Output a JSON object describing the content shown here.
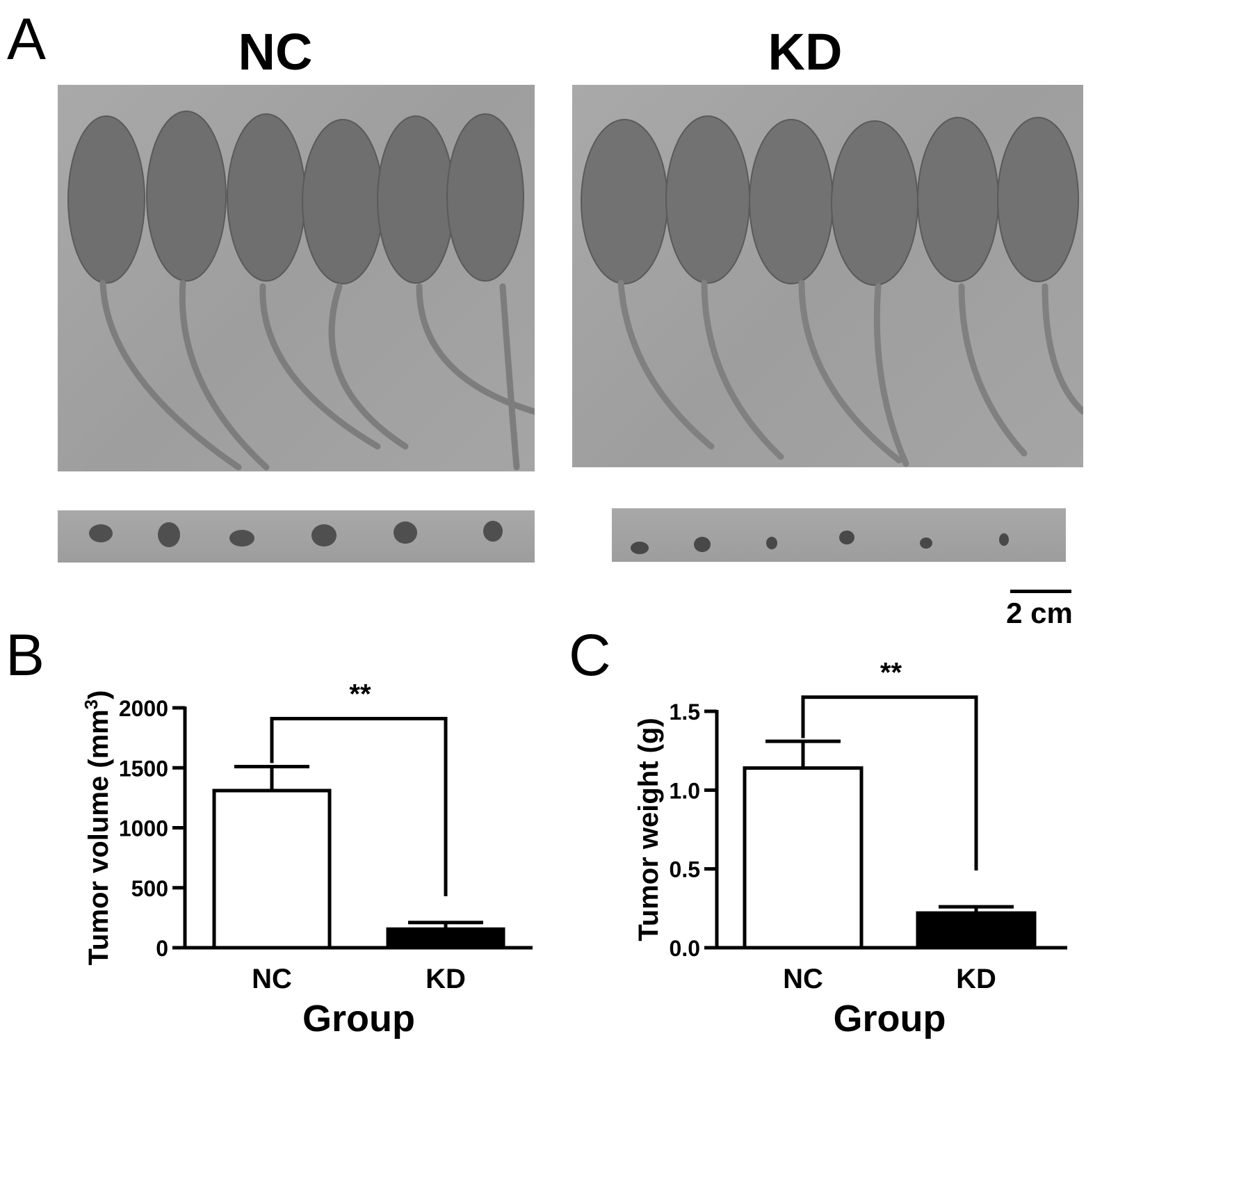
{
  "panels": {
    "a": {
      "letter": "A",
      "groups": [
        "NC",
        "KD"
      ],
      "scale_bar": "2 cm"
    },
    "b": {
      "letter": "B"
    },
    "c": {
      "letter": "C"
    }
  },
  "chart_data": [
    {
      "type": "bar",
      "categories": [
        "NC",
        "KD"
      ],
      "values": [
        1310,
        155
      ],
      "errors": [
        200,
        55
      ],
      "bar_fill": [
        "#ffffff",
        "#000000"
      ],
      "ylabel": "Tumor volume (mm",
      "ylabel_sup": "3",
      "ylabel_end": ")",
      "xlabel": "Group",
      "ylim": [
        0,
        2000
      ],
      "yticks": [
        "0",
        "500",
        "1000",
        "1500",
        "2000"
      ],
      "significance": "**",
      "sig_bracket_y": 1910,
      "sig_left_drop": 1540,
      "sig_right_drop": 430
    },
    {
      "type": "bar",
      "categories": [
        "NC",
        "KD"
      ],
      "values": [
        1.14,
        0.22
      ],
      "errors": [
        0.17,
        0.04
      ],
      "bar_fill": [
        "#ffffff",
        "#000000"
      ],
      "ylabel": "Tumor weight (g)",
      "xlabel": "Group",
      "ylim": [
        0,
        1.5
      ],
      "yticks": [
        "0.0",
        "0.5",
        "1.0",
        "1.5"
      ],
      "significance": "**",
      "sig_bracket_y": 1.59,
      "sig_left_drop": 1.33,
      "sig_right_drop": 0.49
    }
  ]
}
